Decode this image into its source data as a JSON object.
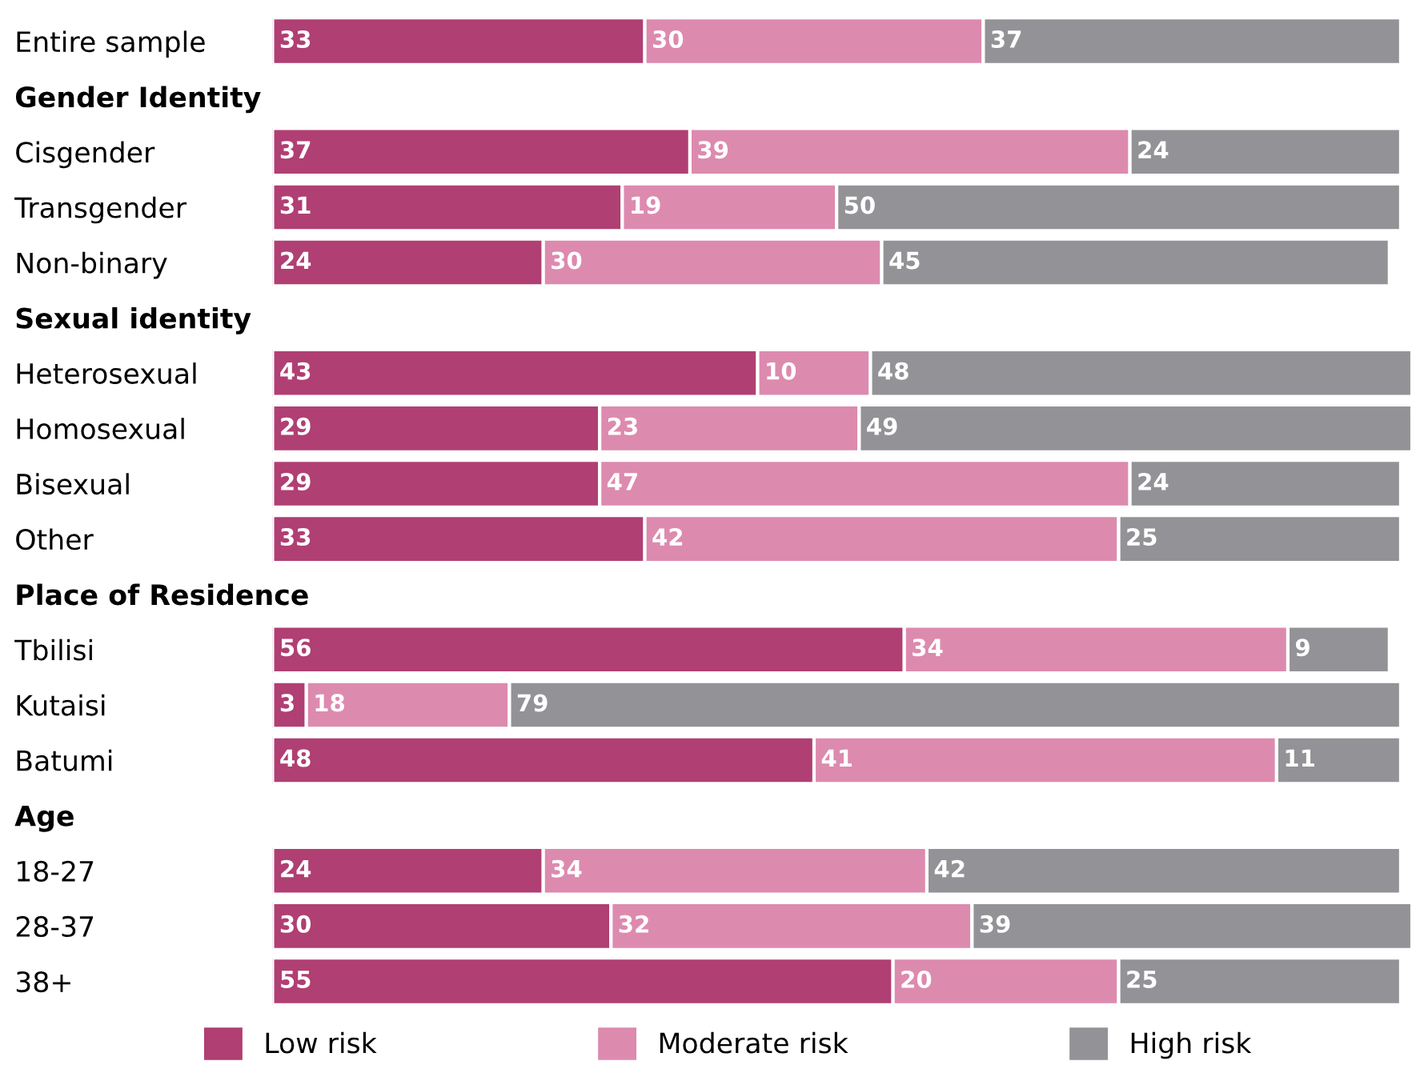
{
  "chart_data": {
    "type": "bar",
    "orientation": "horizontal",
    "stacked": true,
    "data_labels": true,
    "grid": false,
    "legend": "bottom",
    "tick_labels": "y",
    "xlim": [
      0,
      101
    ],
    "categories": [
      "Entire sample",
      "Gender Identity",
      "Cisgender",
      "Transgender",
      "Non-binary",
      "Sexual identity",
      "Heterosexual",
      "Homosexual",
      "Bisexual",
      "Other",
      "Place of Residence",
      "Tbilisi",
      "Kutaisi",
      "Batumi",
      "Age",
      "18-27",
      "28-37",
      "38+"
    ],
    "series": [
      {
        "name": "Low risk",
        "color": "#b03f73",
        "values": [
          33,
          null,
          37,
          31,
          24,
          null,
          43,
          29,
          29,
          33,
          null,
          56,
          3,
          48,
          null,
          24,
          30,
          55
        ]
      },
      {
        "name": "Moderate risk",
        "color": "#dd8aaf",
        "values": [
          30,
          null,
          39,
          19,
          30,
          null,
          10,
          23,
          47,
          42,
          null,
          34,
          18,
          41,
          null,
          34,
          32,
          20
        ]
      },
      {
        "name": "High risk",
        "color": "#939397",
        "values": [
          37,
          null,
          24,
          50,
          45,
          null,
          48,
          49,
          24,
          25,
          null,
          9,
          79,
          11,
          null,
          42,
          39,
          25
        ]
      }
    ]
  }
}
